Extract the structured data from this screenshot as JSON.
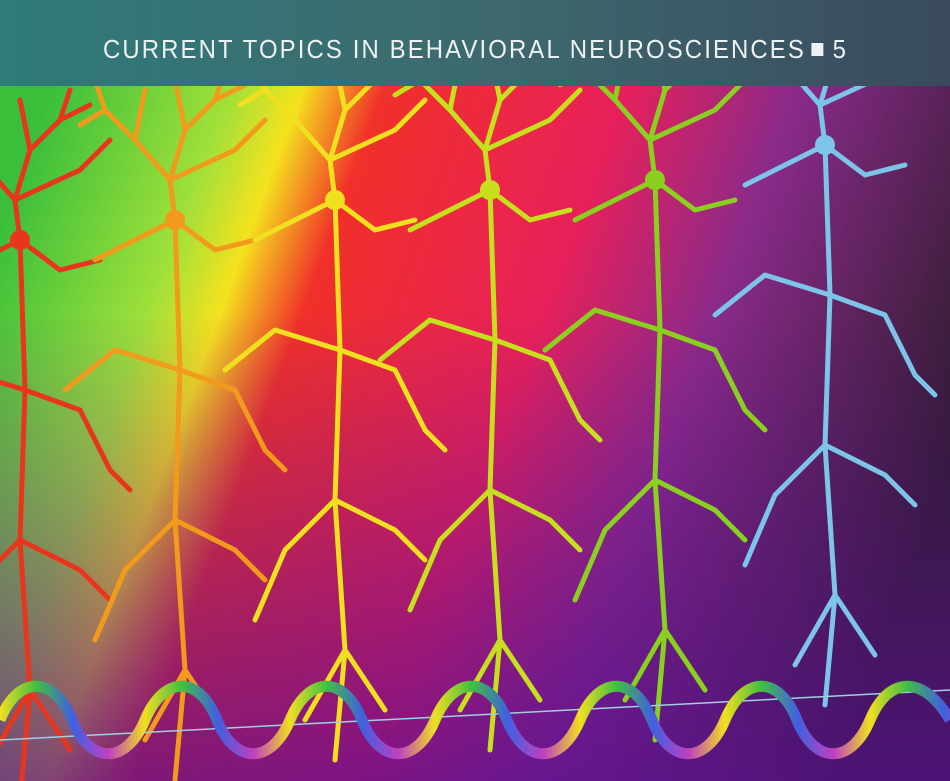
{
  "header": {
    "series": "CURRENT TOPICS IN BEHAVIORAL NEUROSCIENCES",
    "volume": "5"
  }
}
